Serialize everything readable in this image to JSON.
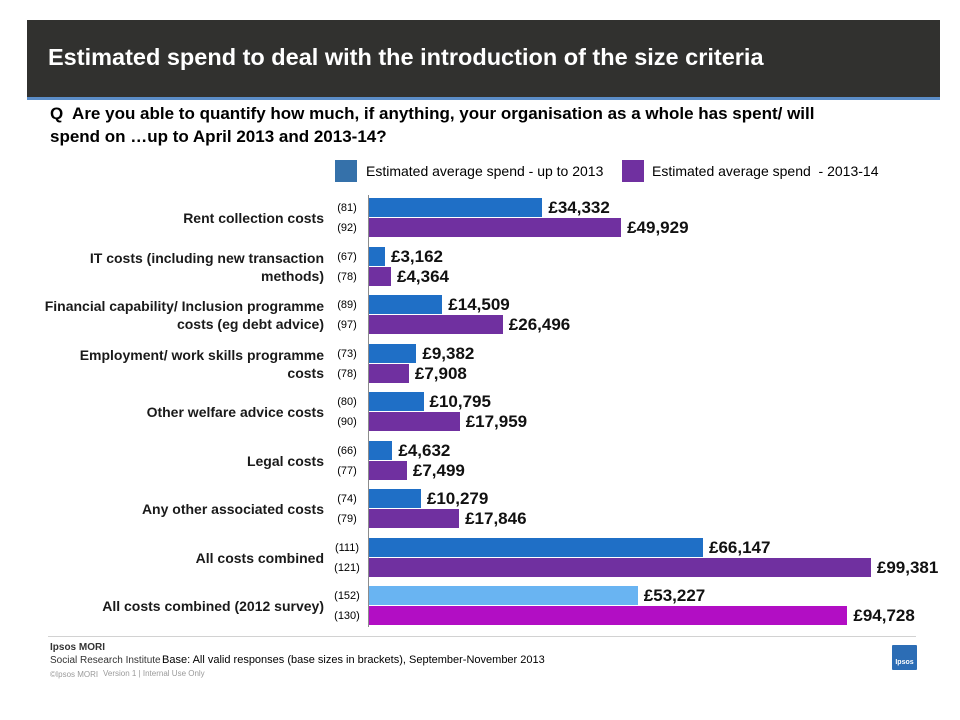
{
  "slide": {
    "header_color": "#31312f",
    "accent_color": "#5b8dc8"
  },
  "chart_data": {
    "type": "bar",
    "orientation": "horizontal",
    "title": "Estimated spend to deal with the introduction of the size criteria",
    "subtitle": "Q  Are you able to quantify how much, if anything, your organisation as a whole has spent/ will\nspend on …up to April 2013 and 2013-14?",
    "categories": [
      "Rent collection costs",
      "IT costs (including new transaction\nmethods)",
      "Financial capability/ Inclusion programme\ncosts (eg debt advice)",
      "Employment/ work skills programme\ncosts",
      "Other welfare advice costs",
      "Legal costs",
      "Any other associated costs",
      "All costs combined",
      "All costs combined (2012 survey)"
    ],
    "series": [
      {
        "name": "Estimated average spend - up to 2013",
        "legend_color": "#3571aa",
        "values": [
          34332,
          3162,
          14509,
          9382,
          10795,
          4632,
          10279,
          66147,
          53227
        ],
        "labels": [
          "£34,332",
          "£3,162",
          "£14,509",
          "£9,382",
          "£10,795",
          "£4,632",
          "£10,279",
          "£66,147",
          "£53,227"
        ],
        "bases": [
          "(81)",
          "(67)",
          "(89)",
          "(73)",
          "(80)",
          "(66)",
          "(74)",
          "(111)",
          "(152)"
        ],
        "colors": [
          "#1f6fc6",
          "#1f6fc6",
          "#1f6fc6",
          "#1f6fc6",
          "#1f6fc6",
          "#1f6fc6",
          "#1f6fc6",
          "#1f6fc6",
          "#69b4f2"
        ]
      },
      {
        "name": "Estimated average spend  - 2013-14",
        "legend_color": "#7030a0",
        "values": [
          49929,
          4364,
          26496,
          7908,
          17959,
          7499,
          17846,
          99381,
          94728
        ],
        "labels": [
          "£49,929",
          "£4,364",
          "£26,496",
          "£7,908",
          "£17,959",
          "£7,499",
          "£17,846",
          "£99,381",
          "£94,728"
        ],
        "bases": [
          "(92)",
          "(78)",
          "(97)",
          "(78)",
          "(90)",
          "(77)",
          "(79)",
          "(121)",
          "(130)"
        ],
        "colors": [
          "#7030a0",
          "#7030a0",
          "#7030a0",
          "#7030a0",
          "#7030a0",
          "#7030a0",
          "#7030a0",
          "#7030a0",
          "#b20ec4"
        ]
      }
    ],
    "xlim": [
      0,
      100000
    ],
    "grid": false,
    "legend_position": "top"
  },
  "footer": {
    "brand": "Ipsos MORI",
    "division": "Social Research Institute",
    "copyright": "©Ipsos MORI",
    "version": "Version 1 | Internal Use Only",
    "base_note": "Base: All valid responses (base sizes in brackets), September-November 2013",
    "logo_text": "Ipsos",
    "logo_color": "#2c6db5"
  }
}
